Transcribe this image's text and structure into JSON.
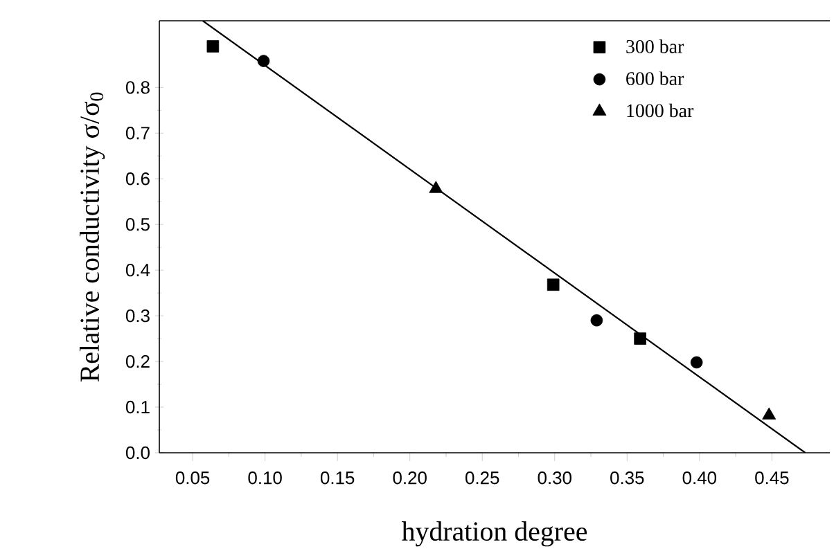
{
  "chart_data": {
    "type": "scatter",
    "xlabel": "hydration degree",
    "ylabel": "Relative conductivity    σ/σ$_{0}$",
    "xlim": [
      0.027,
      0.49
    ],
    "ylim": [
      0,
      0.946
    ],
    "xticks": [
      0.05,
      {
        "value": 0.1,
        "label": "0.10"
      },
      0.15,
      {
        "value": 0.2,
        "label": "0.20"
      },
      0.25,
      {
        "value": 0.3,
        "label": "0.30"
      },
      0.35,
      {
        "value": 0.4,
        "label": "0.40"
      },
      0.45
    ],
    "yticks": [
      {
        "value": 0,
        "label": "0.0"
      },
      0.1,
      0.2,
      0.3,
      0.4,
      0.5,
      0.6,
      0.7,
      0.8
    ],
    "legend": "top right",
    "grid": false,
    "series": [
      {
        "name": "300 bar",
        "color": "#000000",
        "marker": "square",
        "x": [
          0.064,
          0.299,
          0.359
        ],
        "values": [
          0.89,
          0.368,
          0.25
        ]
      },
      {
        "name": "600 bar",
        "color": "#000000",
        "marker": "circle",
        "x": [
          0.099,
          0.329,
          0.398
        ],
        "values": [
          0.858,
          0.29,
          0.198
        ]
      },
      {
        "name": "1000 bar",
        "color": "#000000",
        "marker": "triangle",
        "x": [
          0.218,
          0.448
        ],
        "values": [
          0.578,
          0.082
        ]
      },
      {
        "type": "line",
        "color": "#000000",
        "marker": "none",
        "line_style": "solid",
        "x": [
          0.057,
          0.473
        ],
        "values": [
          0.946,
          0.0
        ]
      }
    ]
  }
}
